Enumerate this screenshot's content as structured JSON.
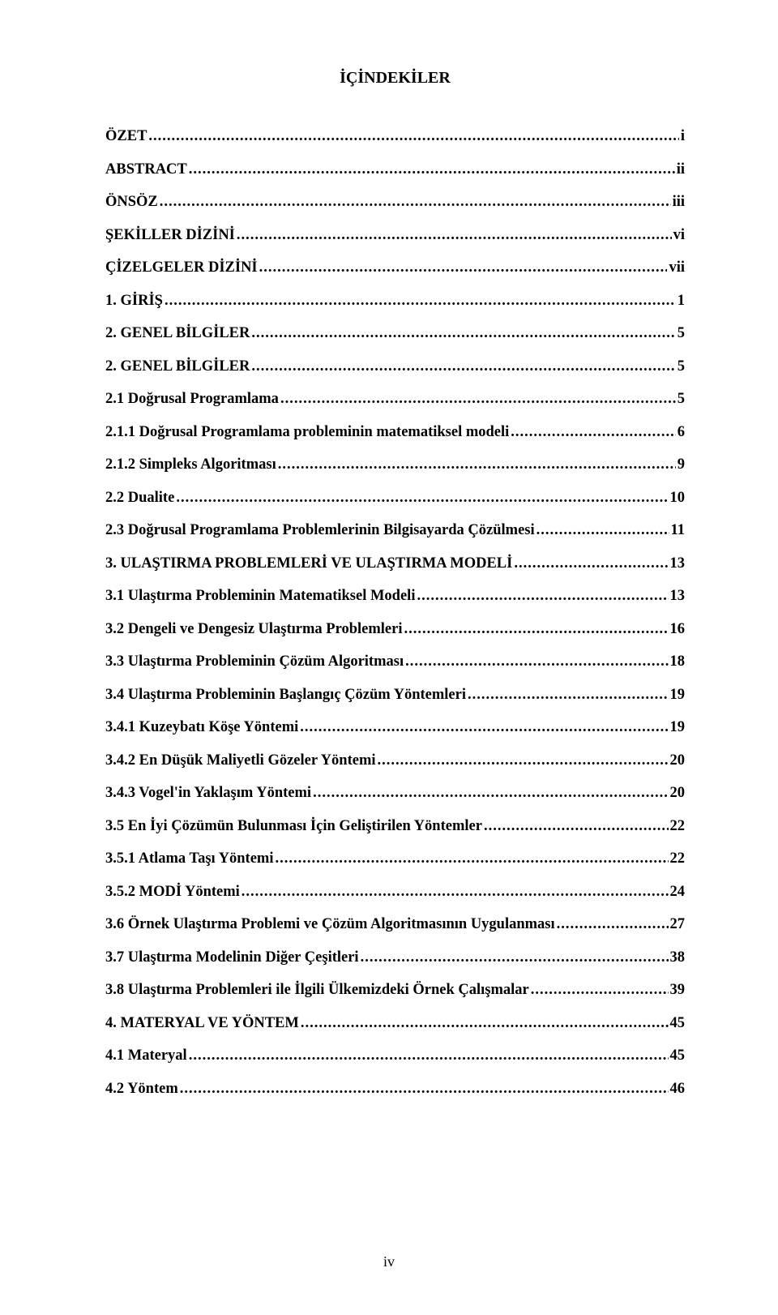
{
  "title": "İÇİNDEKİLER",
  "page_number": "iv",
  "toc": [
    {
      "label": "ÖZET",
      "page": "i"
    },
    {
      "label": "ABSTRACT",
      "page": "ii"
    },
    {
      "label": "ÖNSÖZ",
      "page": "iii"
    },
    {
      "label": "ŞEKİLLER DİZİNİ",
      "page": "vi"
    },
    {
      "label": "ÇİZELGELER DİZİNİ",
      "page": "vii"
    },
    {
      "label": "1. GİRİŞ",
      "page": "1"
    },
    {
      "label": "2. GENEL BİLGİLER",
      "page": "5"
    },
    {
      "label": "2. GENEL BİLGİLER",
      "page": "5"
    },
    {
      "label": "2.1 Doğrusal Programlama",
      "page": "5"
    },
    {
      "label": "2.1.1 Doğrusal Programlama probleminin matematiksel modeli",
      "page": "6"
    },
    {
      "label": "2.1.2 Simpleks Algoritması",
      "page": "9"
    },
    {
      "label": "2.2 Dualite",
      "page": "10"
    },
    {
      "label": "2.3 Doğrusal Programlama Problemlerinin Bilgisayarda Çözülmesi",
      "page": "11"
    },
    {
      "label": "3.  ULAŞTIRMA PROBLEMLERİ VE ULAŞTIRMA MODELİ",
      "page": "13"
    },
    {
      "label": "3.1 Ulaştırma Probleminin Matematiksel Modeli",
      "page": "13"
    },
    {
      "label": "3.2 Dengeli ve Dengesiz Ulaştırma Problemleri",
      "page": "16"
    },
    {
      "label": "3.3 Ulaştırma Probleminin Çözüm Algoritması",
      "page": "18"
    },
    {
      "label": "3.4 Ulaştırma Probleminin Başlangıç Çözüm Yöntemleri",
      "page": "19"
    },
    {
      "label": "3.4.1 Kuzeybatı Köşe Yöntemi",
      "page": "19"
    },
    {
      "label": "3.4.2 En Düşük Maliyetli Gözeler Yöntemi",
      "page": "20"
    },
    {
      "label": "3.4.3 Vogel'in Yaklaşım Yöntemi",
      "page": "20"
    },
    {
      "label": "3.5 En İyi Çözümün Bulunması İçin Geliştirilen Yöntemler",
      "page": "22"
    },
    {
      "label": "3.5.1 Atlama Taşı Yöntemi",
      "page": "22"
    },
    {
      "label": "3.5.2 MODİ Yöntemi",
      "page": "24"
    },
    {
      "label": "3.6 Örnek Ulaştırma Problemi ve Çözüm Algoritmasının Uygulanması",
      "page": "27"
    },
    {
      "label": "3.7 Ulaştırma Modelinin Diğer Çeşitleri",
      "page": "38"
    },
    {
      "label": "3.8 Ulaştırma Problemleri ile İlgili Ülkemizdeki Örnek Çalışmalar",
      "page": "39"
    },
    {
      "label": "4. MATERYAL VE YÖNTEM",
      "page": "45"
    },
    {
      "label": "4.1 Materyal",
      "page": "45"
    },
    {
      "label": "4.2 Yöntem",
      "page": "46"
    }
  ]
}
